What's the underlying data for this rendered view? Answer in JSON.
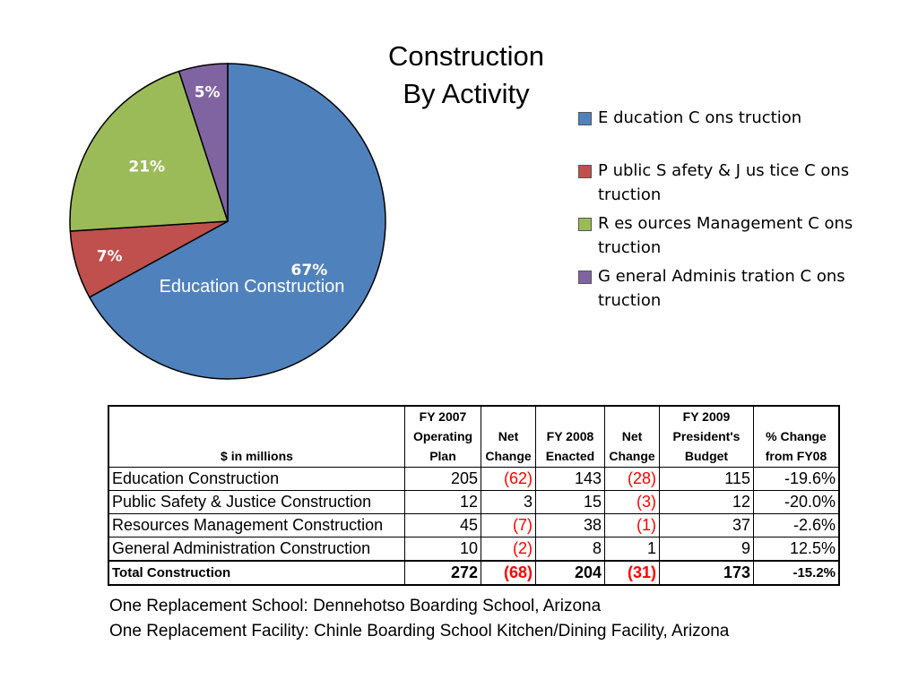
{
  "chart_data": {
    "type": "pie",
    "title": "Construction\nBy Activity",
    "slices": [
      {
        "label": "Education Construction",
        "value": 67,
        "display": "67%",
        "color": "#4F81BD"
      },
      {
        "label": "Public Safety & Justice Construction",
        "value": 7,
        "display": "7%",
        "color": "#C0504D"
      },
      {
        "label": "Resources Management Construction",
        "value": 21,
        "display": "21%",
        "color": "#9BBB59"
      },
      {
        "label": "General Administration Construction",
        "value": 5,
        "display": "5%",
        "color": "#8064A2"
      }
    ],
    "annotation": "Education Construction",
    "legend_position": "right"
  },
  "legend": [
    {
      "text": "E ducation C ons truction"
    },
    {
      "text": "P ublic S afety & J us tice C ons truction"
    },
    {
      "text": "R es ources  Management C ons truction"
    },
    {
      "text": "G eneral Adminis tration C ons truction"
    }
  ],
  "table": {
    "headers": [
      "$ in millions",
      "FY 2007\nOperating\nPlan",
      "Net\nChange",
      "FY 2008\nEnacted",
      "Net\nChange",
      "FY 2009\nPresident's\nBudget",
      "% Change\nfrom FY08"
    ],
    "rows": [
      {
        "label": "Education Construction",
        "cells": [
          "205",
          "(62)",
          "143",
          "(28)",
          "115",
          "-19.6%"
        ]
      },
      {
        "label": "Public Safety & Justice Construction",
        "cells": [
          "12",
          "3",
          "15",
          "(3)",
          "12",
          "-20.0%"
        ]
      },
      {
        "label": "Resources Management Construction",
        "cells": [
          "45",
          "(7)",
          "38",
          "(1)",
          "37",
          "-2.6%"
        ]
      },
      {
        "label": "General Administration Construction",
        "cells": [
          "10",
          "(2)",
          "8",
          "1",
          "9",
          "12.5%"
        ]
      }
    ],
    "total": {
      "label": "Total Construction",
      "cells": [
        "272",
        "(68)",
        "204",
        "(31)",
        "173",
        "-15.2%"
      ]
    }
  },
  "footer": {
    "line1": "One Replacement School:  Dennehotso Boarding School, Arizona",
    "line2": "One Replacement Facility:  Chinle Boarding School Kitchen/Dining Facility, Arizona"
  }
}
